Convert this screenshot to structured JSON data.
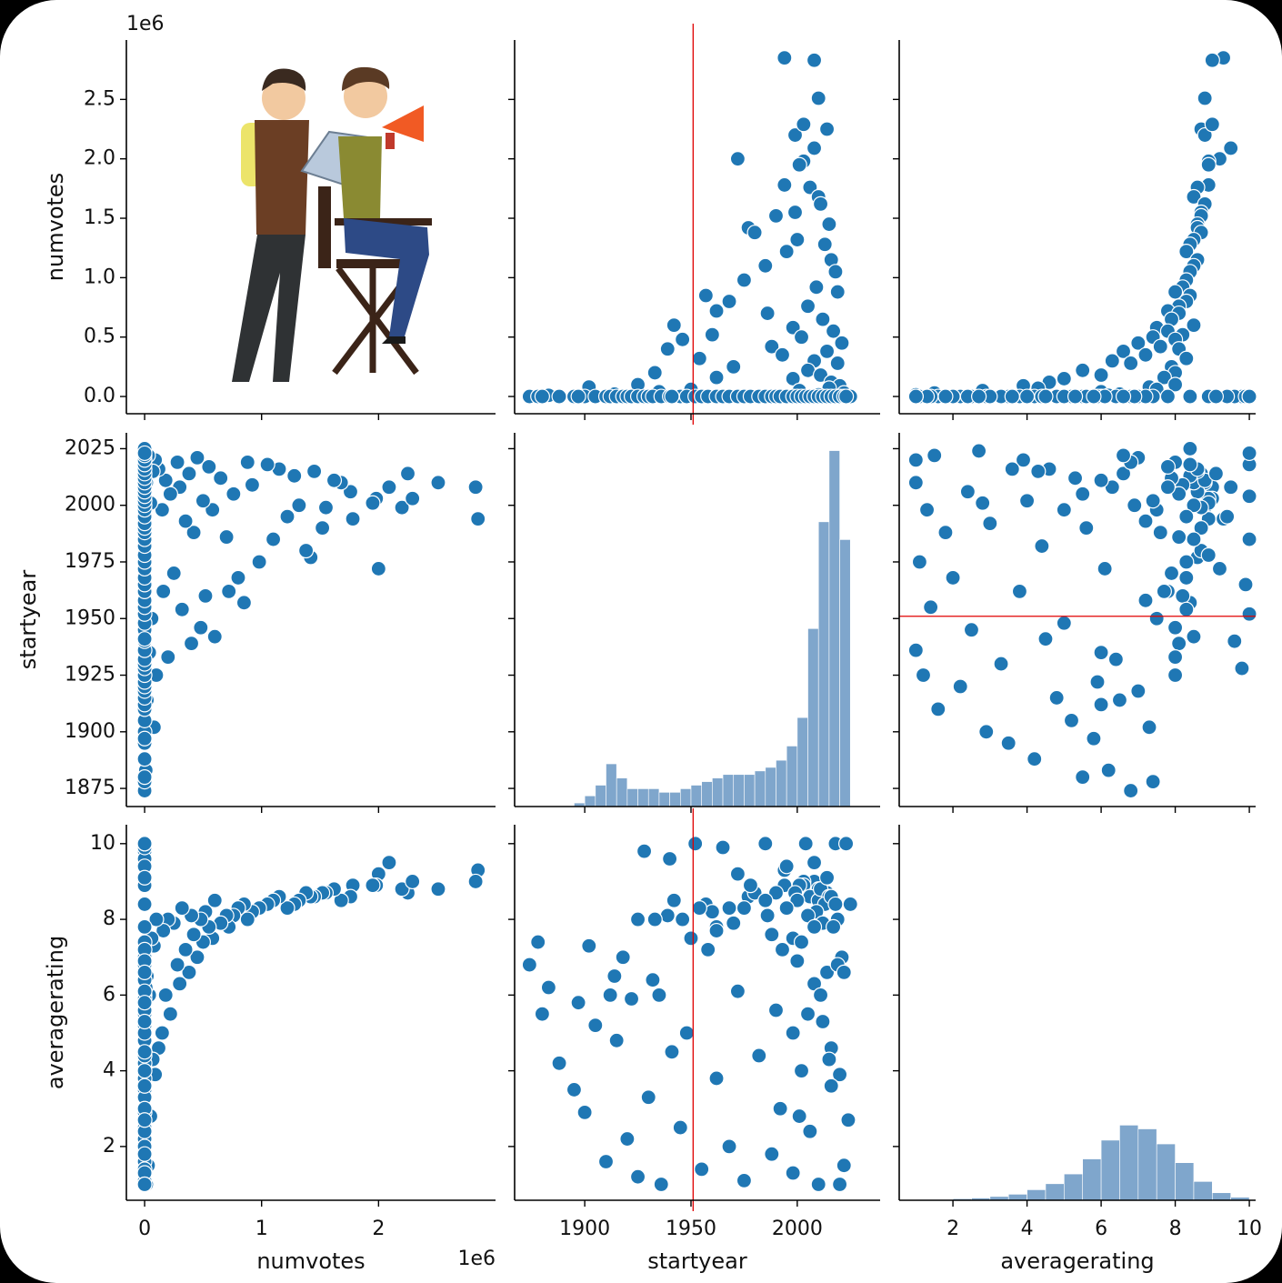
{
  "chart_data": {
    "type": "pairplot",
    "variables": [
      {
        "name": "numvotes",
        "offset_text": "1e6",
        "xlim": [
          -0.156,
          3.0
        ],
        "ylim": [
          -0.145,
          3.0
        ],
        "xticks": [
          0,
          1,
          2
        ],
        "yticks": [
          {
            "value": 0,
            "label": "0.0"
          },
          0.5,
          {
            "value": 1,
            "label": "1.0"
          },
          1.5,
          {
            "value": 2,
            "label": "2.0"
          },
          2.5
        ],
        "values": [
          2.85,
          2.83,
          2.51,
          2.25,
          2.2,
          2.29,
          2.09,
          2.0,
          1.98,
          1.95,
          1.78,
          1.76,
          1.68,
          1.62,
          1.55,
          1.52,
          1.45,
          1.42,
          1.38,
          1.32,
          1.28,
          1.22,
          1.15,
          1.1,
          1.05,
          0.98,
          0.92,
          0.88,
          0.85,
          0.8,
          0.76,
          0.72,
          0.7,
          0.65,
          0.6,
          0.58,
          0.55,
          0.52,
          0.5,
          0.48,
          0.45,
          0.42,
          0.4,
          0.38,
          0.35,
          0.32,
          0.3,
          0.28,
          0.25,
          0.22,
          0.2,
          0.18,
          0.16,
          0.15,
          0.12,
          0.1,
          0.09,
          0.08,
          0.07,
          0.06,
          0.05,
          0.04,
          0.03,
          0.02,
          0.015,
          0.01,
          0,
          0,
          0,
          0,
          0,
          0,
          0,
          0,
          0,
          0,
          0,
          0,
          0,
          0,
          0,
          0,
          0,
          0,
          0,
          0,
          0,
          0,
          0,
          0,
          0,
          0,
          0,
          0,
          0,
          0,
          0,
          0,
          0,
          0,
          0,
          0,
          0,
          0,
          0,
          0,
          0,
          0,
          0,
          0,
          0,
          0,
          0,
          0,
          0,
          0,
          0,
          0,
          0,
          0
        ]
      },
      {
        "name": "startyear",
        "xlim": [
          1867,
          2039
        ],
        "ylim": [
          1867,
          2032
        ],
        "xticks": [
          1900,
          1950,
          2000
        ],
        "yticks": [
          1875,
          1900,
          1925,
          1950,
          1975,
          2000,
          2025
        ],
        "values": [
          1994,
          2008,
          2010,
          2014,
          1999,
          2003,
          2008,
          1972,
          2003,
          2001,
          1994,
          2006,
          2010,
          2011,
          1999,
          1990,
          2015,
          1977,
          1980,
          2000,
          2013,
          1995,
          2016,
          1985,
          2018,
          1975,
          2009,
          2019,
          1957,
          1968,
          2005,
          1962,
          1986,
          2012,
          1942,
          1998,
          2017,
          1960,
          2002,
          1946,
          2021,
          1988,
          1939,
          2014,
          1993,
          1954,
          2008,
          2019,
          1970,
          2005,
          1933,
          2011,
          1962,
          1998,
          2016,
          1925,
          2020,
          1902,
          2015,
          1950,
          2001,
          1935,
          2022,
          1914,
          2010,
          1883,
          1874,
          1878,
          1880,
          1888,
          1895,
          1900,
          1905,
          1910,
          1912,
          1915,
          1918,
          1920,
          1922,
          1925,
          1928,
          1930,
          1932,
          1936,
          1940,
          1945,
          1948,
          1952,
          1955,
          1958,
          1962,
          1965,
          1968,
          1972,
          1975,
          1978,
          1982,
          1985,
          1988,
          1990,
          1992,
          1995,
          1998,
          2000,
          2002,
          2004,
          2006,
          2008,
          2010,
          2012,
          2014,
          2016,
          2018,
          2020,
          2022,
          2024,
          2025,
          2023,
          1897,
          1941
        ]
      },
      {
        "name": "averagerating",
        "xlim": [
          0.55,
          10.17
        ],
        "ylim": [
          0.58,
          10.5
        ],
        "xticks": [
          2,
          4,
          6,
          8,
          10
        ],
        "yticks": [
          2,
          4,
          6,
          8,
          10
        ],
        "values": [
          9.3,
          9.0,
          8.8,
          8.7,
          8.8,
          9.0,
          9.5,
          9.2,
          8.9,
          8.9,
          8.9,
          8.6,
          8.5,
          8.8,
          8.7,
          8.7,
          8.6,
          8.6,
          8.7,
          8.5,
          8.4,
          8.3,
          8.6,
          8.5,
          8.4,
          8.3,
          8.2,
          8.0,
          8.4,
          8.3,
          8.1,
          7.8,
          8.1,
          7.9,
          8.5,
          7.5,
          7.8,
          8.2,
          7.4,
          8.0,
          7.0,
          7.6,
          8.1,
          6.6,
          7.2,
          8.3,
          6.3,
          6.8,
          7.9,
          5.5,
          8.0,
          6.0,
          7.7,
          5.0,
          4.6,
          8.0,
          3.9,
          7.3,
          4.3,
          7.5,
          2.8,
          6.0,
          1.5,
          6.5,
          1.0,
          6.2,
          6.8,
          7.4,
          5.5,
          4.2,
          3.5,
          2.9,
          5.2,
          1.6,
          6.0,
          4.8,
          7.0,
          2.2,
          5.9,
          1.2,
          9.8,
          3.3,
          6.4,
          1.0,
          9.6,
          2.5,
          5.0,
          10.0,
          1.4,
          7.2,
          3.8,
          9.9,
          2.0,
          6.1,
          1.1,
          8.9,
          4.4,
          10.0,
          1.8,
          5.6,
          3.0,
          9.4,
          1.3,
          6.9,
          4.0,
          10.0,
          2.4,
          7.8,
          1.0,
          5.3,
          9.1,
          3.6,
          10.0,
          1.0,
          6.6,
          2.7,
          8.4,
          10.0,
          5.8,
          4.5
        ]
      }
    ],
    "point_color": "#1f77b4",
    "histograms": [
      {
        "variable": 1,
        "color": "#7fa6cc",
        "ylim": [
          0,
          105
        ],
        "bins": [
          1895,
          1900,
          1905,
          1910,
          1915,
          1920,
          1925,
          1930,
          1935,
          1940,
          1945,
          1950,
          1955,
          1960,
          1965,
          1970,
          1975,
          1980,
          1985,
          1990,
          1995,
          2000,
          2005,
          2010,
          2015,
          2020,
          2025
        ],
        "counts": [
          1,
          3,
          6,
          12,
          8,
          5,
          5,
          5,
          4,
          4,
          5,
          6,
          7,
          8,
          9,
          9,
          9,
          10,
          11,
          13,
          17,
          25,
          50,
          80,
          100,
          75
        ]
      },
      {
        "variable": 2,
        "color": "#7fa6cc",
        "ylim": [
          0,
          500
        ],
        "bins": [
          1,
          1.5,
          2,
          2.5,
          3,
          3.5,
          4,
          4.5,
          5,
          5.5,
          6,
          6.5,
          7,
          7.5,
          8,
          8.5,
          9,
          9.5,
          10
        ],
        "counts": [
          1,
          1,
          2,
          3,
          5,
          8,
          14,
          22,
          35,
          55,
          80,
          100,
          95,
          75,
          50,
          25,
          10,
          4
        ]
      }
    ],
    "reference_lines": [
      {
        "row": 0,
        "col": 1,
        "axis": "x",
        "value": 1951,
        "color": "#e00000"
      },
      {
        "row": 2,
        "col": 1,
        "axis": "x",
        "value": 1951,
        "color": "#e00000"
      },
      {
        "row": 1,
        "col": 2,
        "axis": "y",
        "value": 1951,
        "color": "#e00000"
      }
    ]
  }
}
